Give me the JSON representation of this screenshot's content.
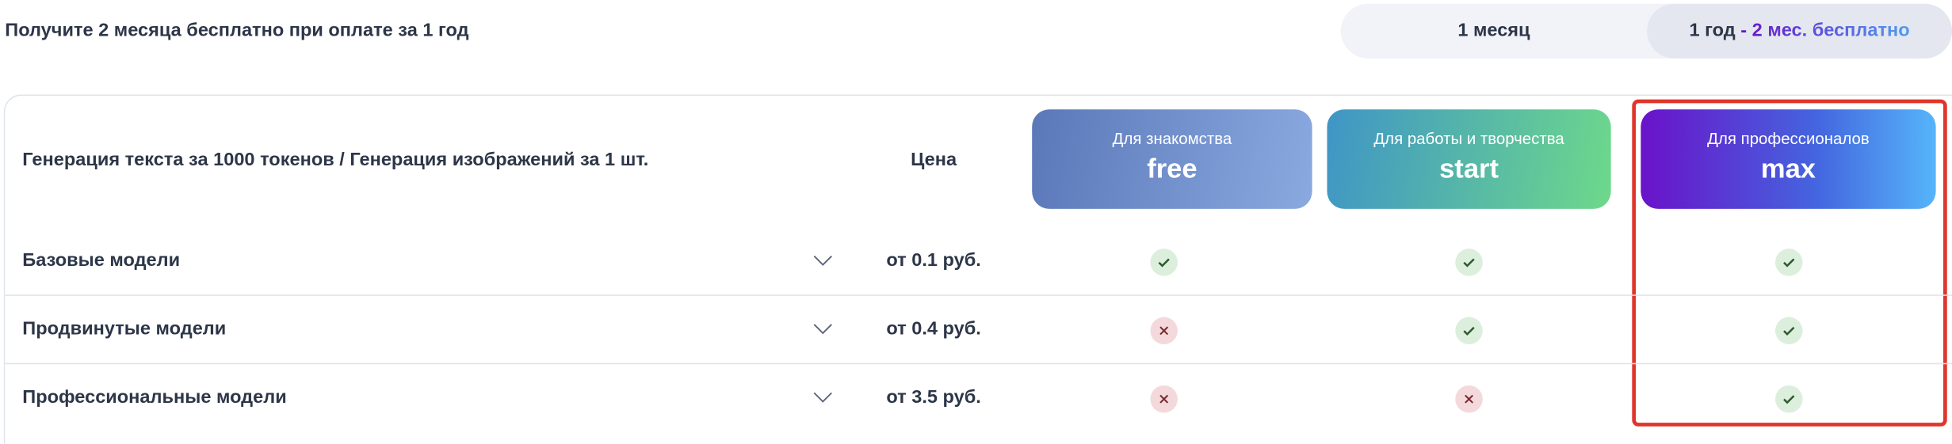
{
  "promo_text": "Получите 2 месяца бесплатно при оплате за 1 год",
  "billing_toggle": {
    "monthly": "1 месяц",
    "yearly": "1 год",
    "yearly_bonus": "- 2 мес. бесплатно",
    "selected": "yearly"
  },
  "table": {
    "header": "Генерация текста за 1000 токенов / Генерация изображений за 1 шт.",
    "price_header": "Цена",
    "plans": [
      {
        "subtitle": "Для знакомства",
        "name": "free"
      },
      {
        "subtitle": "Для работы и творчества",
        "name": "start"
      },
      {
        "subtitle": "Для профессионалов",
        "name": "max",
        "highlighted": true
      }
    ],
    "rows": [
      {
        "name": "Базовые модели",
        "price": "от 0.1 руб.",
        "included": [
          true,
          true,
          true
        ]
      },
      {
        "name": "Продвинутые модели",
        "price": "от 0.4 руб.",
        "included": [
          false,
          true,
          true
        ]
      },
      {
        "name": "Профессиональные модели",
        "price": "от 3.5 руб.",
        "included": [
          false,
          false,
          true
        ]
      }
    ]
  },
  "colors": {
    "text": "#2d3648",
    "check_bg": "#dcefdc",
    "cross_bg": "#f4d9dc",
    "highlight_border": "#e0352b"
  }
}
